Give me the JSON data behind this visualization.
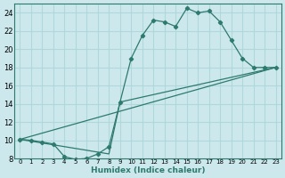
{
  "xlabel": "Humidex (Indice chaleur)",
  "bg_color": "#cce8ec",
  "grid_color": "#b0d8dc",
  "line_color": "#2d7a6e",
  "xlim": [
    -0.5,
    23.5
  ],
  "ylim": [
    8,
    25
  ],
  "xtick_labels": [
    "0",
    "1",
    "2",
    "3",
    "4",
    "5",
    "6",
    "7",
    "8",
    "9",
    "10",
    "11",
    "12",
    "13",
    "14",
    "15",
    "16",
    "17",
    "18",
    "19",
    "20",
    "21",
    "22",
    "23"
  ],
  "ytick_values": [
    8,
    10,
    12,
    14,
    16,
    18,
    20,
    22,
    24
  ],
  "line_main": {
    "x": [
      0,
      1,
      2,
      3,
      4,
      5,
      6,
      7,
      8,
      9,
      10,
      11,
      12,
      13,
      14,
      15,
      16,
      17,
      18,
      19,
      20,
      21,
      22,
      23
    ],
    "y": [
      10.1,
      10.0,
      9.8,
      9.6,
      8.2,
      7.9,
      8.0,
      8.5,
      9.3,
      14.2,
      19.0,
      21.5,
      23.2,
      23.0,
      22.5,
      24.5,
      24.0,
      24.2,
      23.0,
      21.0,
      19.0,
      18.0,
      18.0,
      18.0
    ]
  },
  "line_diag1": {
    "x": [
      0,
      23
    ],
    "y": [
      10.1,
      18.0
    ]
  },
  "line_diag2": {
    "x": [
      0,
      8,
      9,
      23
    ],
    "y": [
      10.1,
      8.5,
      14.2,
      18.0
    ]
  }
}
